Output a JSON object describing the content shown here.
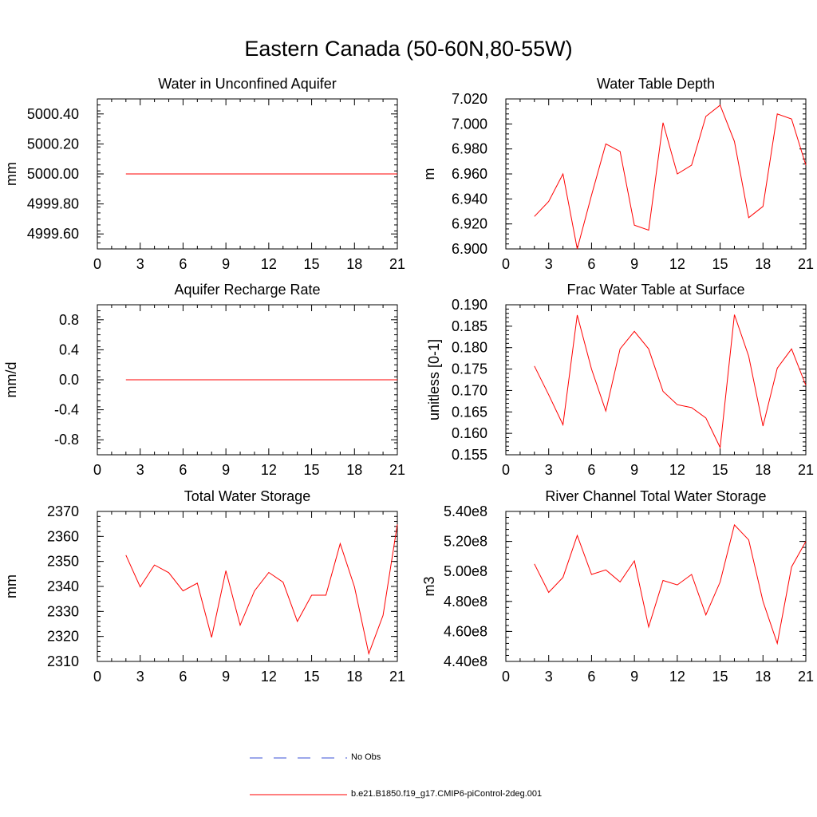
{
  "title": "Eastern Canada (50-60N,80-55W)",
  "colors": {
    "model": "#ff0000",
    "obs": "#3a4fd6",
    "axis": "#000000"
  },
  "legend": [
    {
      "label": "No Obs",
      "style": "dashed",
      "color": "#3a4fd6"
    },
    {
      "label": "b.e21.B1850.f19_g17.CMIP6-piControl-2deg.001",
      "style": "solid",
      "color": "#ff0000"
    }
  ],
  "chart_data": [
    {
      "type": "line",
      "title": "Water in Unconfined Aquifer",
      "ylabel": "mm",
      "xlim": [
        0,
        21
      ],
      "ylim": [
        4999.5,
        5000.5
      ],
      "xticks": [
        0,
        3,
        6,
        9,
        12,
        15,
        18,
        21
      ],
      "yticks": [
        4999.6,
        4999.8,
        5000.0,
        5000.2,
        5000.4
      ],
      "ytick_labels": [
        "4999.60",
        "4999.80",
        "5000.00",
        "5000.20",
        "5000.40"
      ],
      "x": [
        2,
        3,
        4,
        5,
        6,
        7,
        8,
        9,
        10,
        11,
        12,
        13,
        14,
        15,
        16,
        17,
        18,
        19,
        20,
        21
      ],
      "series": [
        {
          "values": [
            5000,
            5000,
            5000,
            5000,
            5000,
            5000,
            5000,
            5000,
            5000,
            5000,
            5000,
            5000,
            5000,
            5000,
            5000,
            5000,
            5000,
            5000,
            5000,
            5000
          ]
        }
      ]
    },
    {
      "type": "line",
      "title": "Water Table Depth",
      "ylabel": "m",
      "xlim": [
        0,
        21
      ],
      "ylim": [
        6.9,
        7.02
      ],
      "xticks": [
        0,
        3,
        6,
        9,
        12,
        15,
        18,
        21
      ],
      "yticks": [
        6.9,
        6.92,
        6.94,
        6.96,
        6.98,
        7.0,
        7.02
      ],
      "ytick_labels": [
        "6.900",
        "6.920",
        "6.940",
        "6.960",
        "6.980",
        "7.000",
        "7.020"
      ],
      "x": [
        2,
        3,
        4,
        5,
        6,
        7,
        8,
        9,
        10,
        11,
        12,
        13,
        14,
        15,
        16,
        17,
        18,
        19,
        20,
        21
      ],
      "series": [
        {
          "values": [
            6.926,
            6.938,
            6.96,
            6.9,
            6.943,
            6.984,
            6.978,
            6.919,
            6.915,
            7.001,
            6.96,
            6.967,
            7.006,
            7.015,
            6.986,
            6.925,
            6.934,
            7.008,
            7.004,
            6.967
          ]
        }
      ]
    },
    {
      "type": "line",
      "title": "Aquifer Recharge Rate",
      "ylabel": "mm/d",
      "xlim": [
        0,
        21
      ],
      "ylim": [
        -1.0,
        1.0
      ],
      "xticks": [
        0,
        3,
        6,
        9,
        12,
        15,
        18,
        21
      ],
      "yticks": [
        -0.8,
        -0.4,
        0.0,
        0.4,
        0.8
      ],
      "ytick_labels": [
        "-0.8",
        "-0.4",
        "0.0",
        "0.4",
        "0.8"
      ],
      "x": [
        2,
        3,
        4,
        5,
        6,
        7,
        8,
        9,
        10,
        11,
        12,
        13,
        14,
        15,
        16,
        17,
        18,
        19,
        20,
        21
      ],
      "series": [
        {
          "values": [
            0,
            0,
            0,
            0,
            0,
            0,
            0,
            0,
            0,
            0,
            0,
            0,
            0,
            0,
            0,
            0,
            0,
            0,
            0,
            0
          ]
        }
      ]
    },
    {
      "type": "line",
      "title": "Frac Water Table at Surface",
      "ylabel": "unitless [0-1]",
      "xlim": [
        0,
        21
      ],
      "ylim": [
        0.155,
        0.19
      ],
      "xticks": [
        0,
        3,
        6,
        9,
        12,
        15,
        18,
        21
      ],
      "yticks": [
        0.155,
        0.16,
        0.165,
        0.17,
        0.175,
        0.18,
        0.185,
        0.19
      ],
      "ytick_labels": [
        "0.155",
        "0.160",
        "0.165",
        "0.170",
        "0.175",
        "0.180",
        "0.185",
        "0.190"
      ],
      "x": [
        2,
        3,
        4,
        5,
        6,
        7,
        8,
        9,
        10,
        11,
        12,
        13,
        14,
        15,
        16,
        17,
        18,
        19,
        20,
        21
      ],
      "series": [
        {
          "values": [
            0.1757,
            0.169,
            0.162,
            0.1876,
            0.175,
            0.1652,
            0.1797,
            0.1838,
            0.1797,
            0.1698,
            0.1667,
            0.166,
            0.1636,
            0.1567,
            0.1877,
            0.178,
            0.1617,
            0.1752,
            0.1797,
            0.1712
          ]
        }
      ]
    },
    {
      "type": "line",
      "title": "Total Water Storage",
      "ylabel": "mm",
      "xlim": [
        0,
        21
      ],
      "ylim": [
        2310,
        2370
      ],
      "xticks": [
        0,
        3,
        6,
        9,
        12,
        15,
        18,
        21
      ],
      "yticks": [
        2310,
        2320,
        2330,
        2340,
        2350,
        2360,
        2370
      ],
      "ytick_labels": [
        "2310",
        "2320",
        "2330",
        "2340",
        "2350",
        "2360",
        "2370"
      ],
      "x": [
        2,
        3,
        4,
        5,
        6,
        7,
        8,
        9,
        10,
        11,
        12,
        13,
        14,
        15,
        16,
        17,
        18,
        19,
        20,
        21
      ],
      "series": [
        {
          "values": [
            2352.5,
            2339.8,
            2348.6,
            2345.5,
            2338.2,
            2341.3,
            2319.6,
            2346.3,
            2324.5,
            2338.2,
            2345.6,
            2341.7,
            2326.0,
            2336.5,
            2336.5,
            2357.1,
            2339.8,
            2313.1,
            2328.4,
            2364.8
          ]
        }
      ]
    },
    {
      "type": "line",
      "title": "River Channel Total Water Storage",
      "ylabel": "m3",
      "xlim": [
        0,
        21
      ],
      "ylim": [
        440000000.0,
        540000000.0
      ],
      "xticks": [
        0,
        3,
        6,
        9,
        12,
        15,
        18,
        21
      ],
      "yticks": [
        440000000.0,
        460000000.0,
        480000000.0,
        500000000.0,
        520000000.0,
        540000000.0
      ],
      "ytick_labels": [
        "4.40e8",
        "4.60e8",
        "4.80e8",
        "5.00e8",
        "5.20e8",
        "5.40e8"
      ],
      "x": [
        2,
        3,
        4,
        5,
        6,
        7,
        8,
        9,
        10,
        11,
        12,
        13,
        14,
        15,
        16,
        17,
        18,
        19,
        20,
        21
      ],
      "series": [
        {
          "values": [
            505000000.0,
            486000000.0,
            496000000.0,
            524000000.0,
            498000000.0,
            501000000.0,
            493000000.0,
            507000000.0,
            463000000.0,
            494000000.0,
            491000000.0,
            498000000.0,
            471000000.0,
            493000000.0,
            531000000.0,
            521000000.0,
            480000000.0,
            452000000.0,
            503000000.0,
            520000000.0
          ]
        }
      ]
    }
  ]
}
